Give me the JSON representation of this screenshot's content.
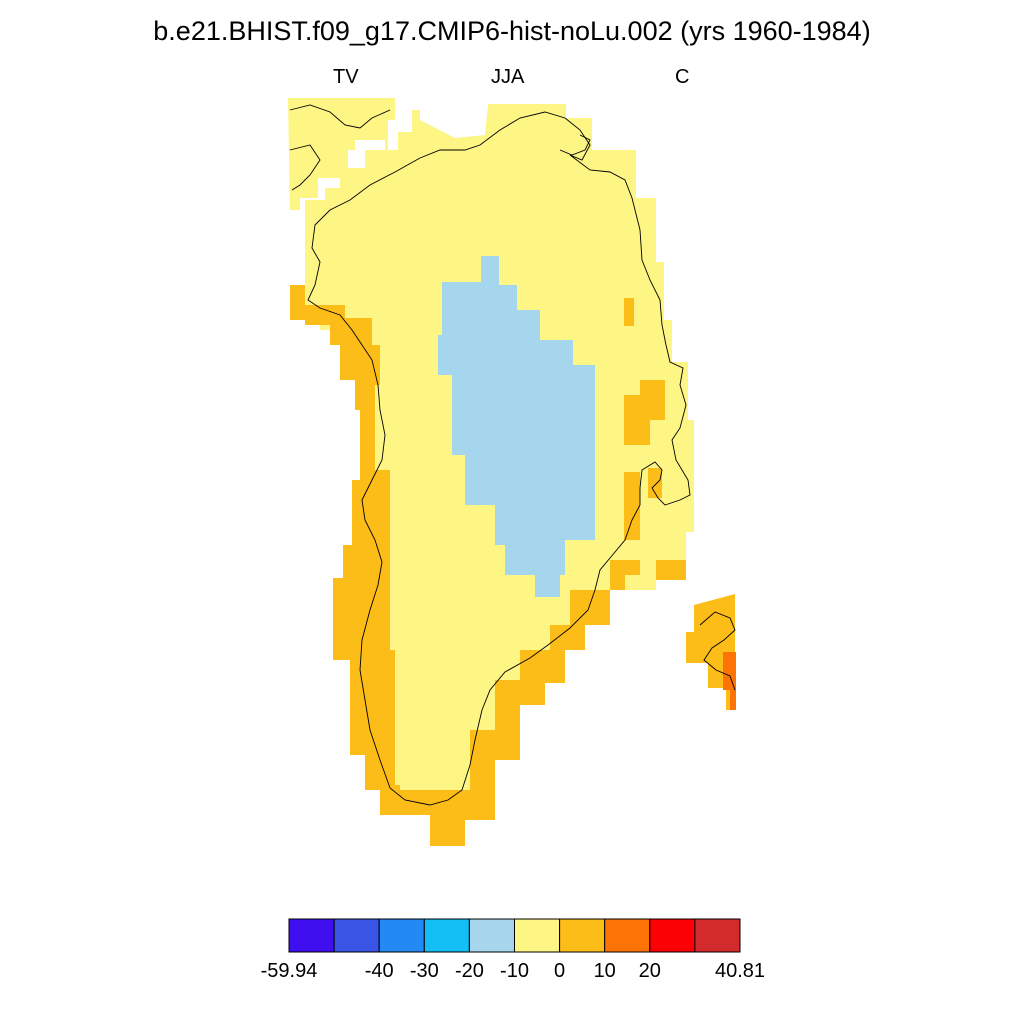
{
  "title": "b.e21.BHIST.f09_g17.CMIP6-hist-noLu.002 (yrs 1960-1984)",
  "subtitles": {
    "left": "TV",
    "center": "JJA",
    "right": "C"
  },
  "colorbar": {
    "colors": [
      "#3f0ff0",
      "#3a55e6",
      "#2389f5",
      "#14bff5",
      "#a5d6ee",
      "#fdf584",
      "#fdbd18",
      "#fd7305",
      "#fb0004",
      "#d32b2b"
    ],
    "labels": [
      "-59.94",
      "-40",
      "-30",
      "-20",
      "-10",
      "0",
      "10",
      "20",
      "40.81"
    ],
    "label_boundaries": [
      0,
      2,
      3,
      4,
      5,
      6,
      7,
      8,
      10
    ]
  },
  "map_colors": {
    "neg10_0": "#a5d6ee",
    "0_10": "#fdf584",
    "10_20": "#fdbd18",
    "20_40": "#fd7305",
    "coastline": "#000000"
  }
}
